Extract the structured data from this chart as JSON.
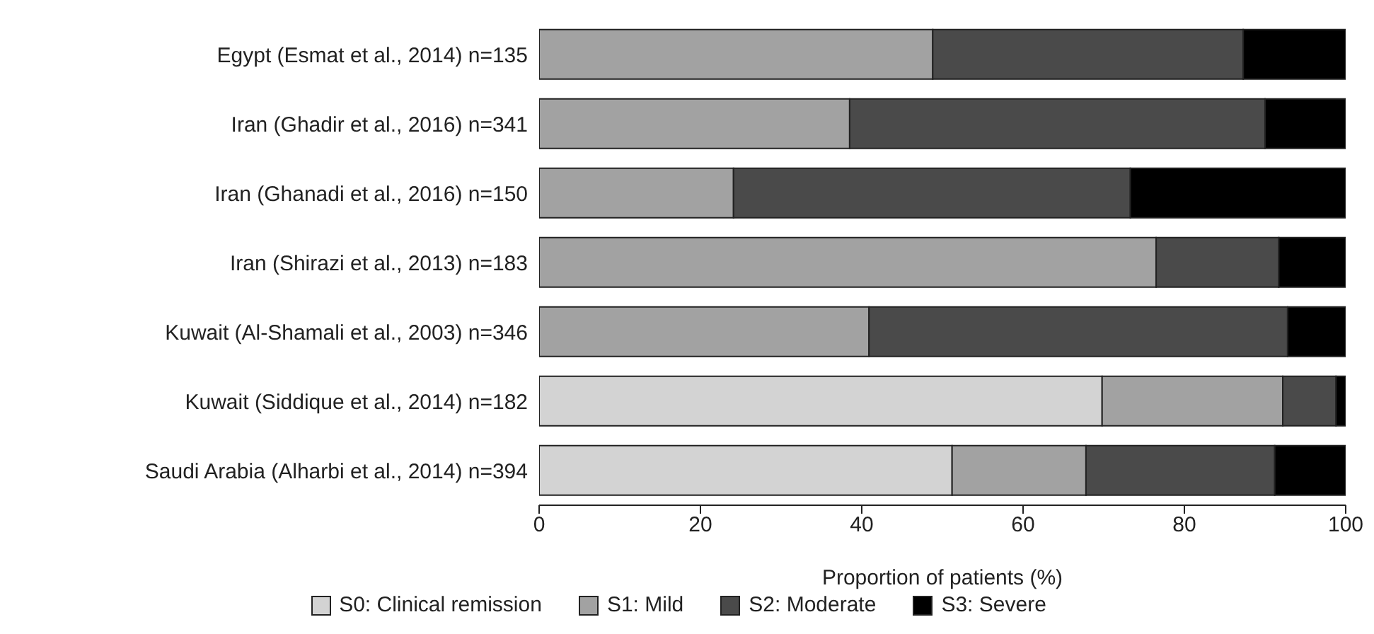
{
  "chart_data": {
    "type": "bar",
    "orientation": "horizontal",
    "stacked": true,
    "xlabel": "Proportion of patients (%)",
    "categories": [
      "Egypt (Esmat et al., 2014) n=135",
      "Iran (Ghadir et al., 2016) n=341",
      "Iran (Ghanadi et al., 2016) n=150",
      "Iran (Shirazi et al., 2013) n=183",
      "Kuwait (Al-Shamali et al., 2003) n=346",
      "Kuwait (Siddique et al., 2014) n=182",
      "Saudi Arabia (Alharbi et al., 2014) n=394"
    ],
    "series": [
      {
        "name": "S0: Clinical remission",
        "color": "#d3d3d3",
        "values": [
          0,
          0,
          0,
          0,
          0,
          69.8,
          51.2
        ]
      },
      {
        "name": "S1: Mild",
        "color": "#a2a2a2",
        "values": [
          48.8,
          38.5,
          24.1,
          76.5,
          40.9,
          22.4,
          16.6
        ]
      },
      {
        "name": "S2: Moderate",
        "color": "#4a4a4a",
        "values": [
          38.5,
          51.5,
          49.2,
          15.2,
          51.9,
          6.6,
          23.4
        ]
      },
      {
        "name": "S3: Severe",
        "color": "#000000",
        "values": [
          12.7,
          10,
          26.7,
          8.3,
          7.2,
          1.2,
          8.8
        ]
      }
    ],
    "xlim": [
      0,
      100
    ],
    "xticks": [
      0,
      20,
      40,
      60,
      80,
      100
    ],
    "grid": false,
    "legend": "bottom"
  }
}
